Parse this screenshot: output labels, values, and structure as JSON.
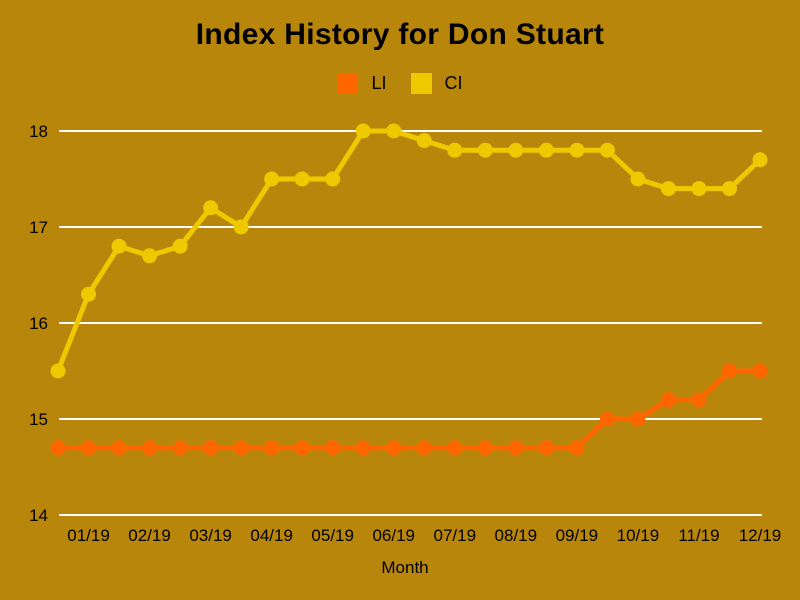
{
  "chart_data": {
    "type": "line",
    "title": "Index History for Don Stuart",
    "xlabel": "Month",
    "ylabel": "",
    "background_color": "#b8860b",
    "grid_color": "#ffffff",
    "text_color": "#000000",
    "grid": true,
    "legend_position": "top-center",
    "marker": "circle",
    "y_ticks": [
      14,
      15,
      16,
      17,
      18
    ],
    "ylim": [
      14,
      18.4
    ],
    "x_tick_labels": [
      "01/19",
      "02/19",
      "03/19",
      "04/19",
      "05/19",
      "06/19",
      "07/19",
      "08/19",
      "09/19",
      "10/19",
      "11/19",
      "12/19"
    ],
    "points_per_label": 2,
    "series": [
      {
        "name": "LI",
        "color": "#ff6600",
        "values": [
          14.7,
          14.7,
          14.7,
          14.7,
          14.7,
          14.7,
          14.7,
          14.7,
          14.7,
          14.7,
          14.7,
          14.7,
          14.7,
          14.7,
          14.7,
          14.7,
          14.7,
          14.7,
          15.0,
          15.0,
          15.2,
          15.2,
          15.5,
          15.5
        ]
      },
      {
        "name": "CI",
        "color": "#eec900",
        "values": [
          15.5,
          16.3,
          16.8,
          16.7,
          16.8,
          17.2,
          17.0,
          17.5,
          17.5,
          17.5,
          18.0,
          18.0,
          17.9,
          17.8,
          17.8,
          17.8,
          17.8,
          17.8,
          17.8,
          17.5,
          17.4,
          17.4,
          17.4,
          17.7
        ]
      }
    ]
  }
}
